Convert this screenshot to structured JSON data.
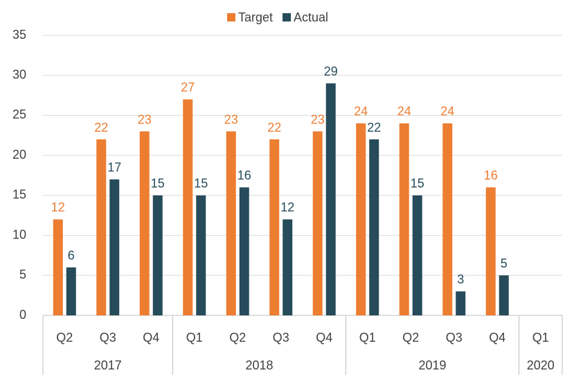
{
  "chart_data": {
    "type": "bar",
    "categories": [
      "Q2",
      "Q3",
      "Q4",
      "Q1",
      "Q2",
      "Q3",
      "Q4",
      "Q1",
      "Q2",
      "Q3",
      "Q4",
      "Q1"
    ],
    "groups": [
      {
        "name": "2017",
        "span": 3
      },
      {
        "name": "2018",
        "span": 4
      },
      {
        "name": "2019",
        "span": 4
      },
      {
        "name": "2020",
        "span": 1
      }
    ],
    "series": [
      {
        "name": "Target",
        "color": "#ed7d31",
        "values": [
          12,
          22,
          23,
          27,
          23,
          22,
          23,
          24,
          24,
          24,
          16,
          null
        ]
      },
      {
        "name": "Actual",
        "color": "#264b5a",
        "values": [
          6,
          17,
          15,
          15,
          16,
          12,
          29,
          22,
          15,
          3,
          5,
          null
        ]
      }
    ],
    "ylim": [
      0,
      35
    ],
    "yticks": [
      0,
      5,
      10,
      15,
      20,
      25,
      30,
      35
    ],
    "grid": true,
    "legend": "top",
    "data_labels": true
  }
}
